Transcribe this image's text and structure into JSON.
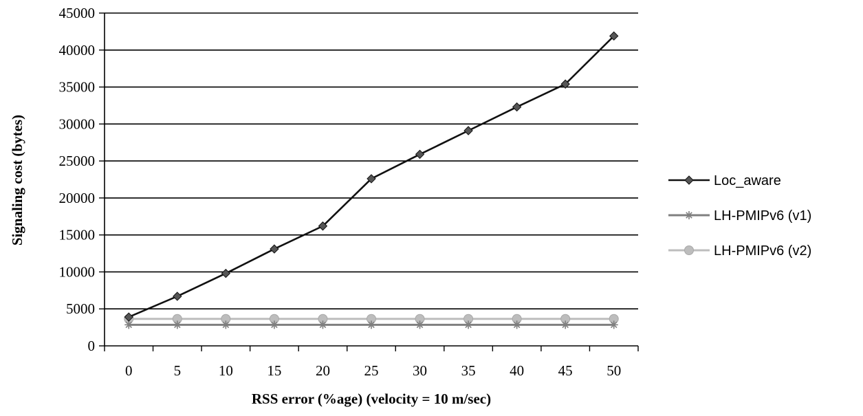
{
  "chart_data": {
    "type": "line",
    "title": "",
    "xlabel": "RSS error (%age) (velocity = 10 m/sec)",
    "ylabel": "Signaling cost (bytes)",
    "x": [
      "0",
      "5",
      "10",
      "15",
      "20",
      "25",
      "30",
      "35",
      "40",
      "45",
      "50"
    ],
    "ylim": [
      0,
      45000
    ],
    "yticks": [
      0,
      5000,
      10000,
      15000,
      20000,
      25000,
      30000,
      35000,
      40000,
      45000
    ],
    "grid": "horizontal",
    "legend_position": "right",
    "series": [
      {
        "name": "Loc_aware",
        "color": "#111111",
        "marker": "diamond",
        "values": [
          3900,
          6700,
          9800,
          13100,
          16200,
          22600,
          25900,
          29100,
          32300,
          35400,
          41900
        ]
      },
      {
        "name": "LH-PMIPv6 (v1)",
        "color": "#7f7f7f",
        "marker": "asterisk",
        "values": [
          2850,
          2850,
          2850,
          2850,
          2850,
          2850,
          2850,
          2850,
          2850,
          2850,
          2850
        ]
      },
      {
        "name": "LH-PMIPv6 (v2)",
        "color": "#bdbdbd",
        "marker": "circle",
        "values": [
          3650,
          3650,
          3650,
          3650,
          3650,
          3650,
          3650,
          3650,
          3650,
          3650,
          3650
        ]
      }
    ]
  }
}
